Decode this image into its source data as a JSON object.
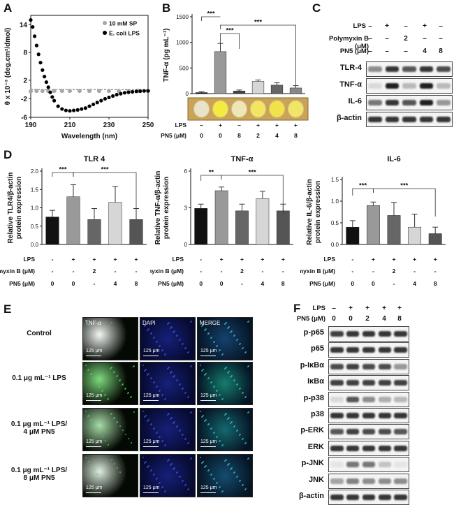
{
  "panels": {
    "A": "A",
    "B": "B",
    "C": "C",
    "D": "D",
    "E": "E",
    "F": "F"
  },
  "chart_data": [
    {
      "id": "A",
      "type": "line",
      "xlabel": "Wavelength (nm)",
      "ylabel": "θ x 10⁻³ (deg.cm²/dmol)",
      "xticks": [
        "190",
        "210",
        "230",
        "250"
      ],
      "yticks": [
        "14",
        "8",
        "2",
        "-2",
        "-6"
      ],
      "xlim": [
        190,
        250
      ],
      "ylim": [
        -6,
        16
      ],
      "series": [
        {
          "name": "10 mM SP",
          "color": "#a6a6a6",
          "x": [
            190,
            193,
            196,
            199,
            202,
            206,
            210,
            215,
            220,
            225,
            230,
            235,
            240,
            245,
            250
          ],
          "y": [
            -0.4,
            -0.3,
            -0.3,
            -0.3,
            -0.3,
            -0.3,
            -0.3,
            -0.3,
            -0.3,
            -0.3,
            -0.3,
            -0.3,
            -0.3,
            -0.3,
            -0.3
          ]
        },
        {
          "name": "E. coli LPS",
          "color": "#000000",
          "x": [
            190,
            191,
            192,
            193,
            194,
            195,
            196,
            197,
            198,
            199,
            200,
            201,
            202,
            204,
            206,
            208,
            210,
            212,
            214,
            216,
            218,
            220,
            222,
            224,
            226,
            228,
            230,
            232,
            234,
            236,
            238,
            240,
            242,
            244,
            246,
            248,
            250
          ],
          "y": [
            15,
            13.5,
            11.5,
            9.5,
            7.6,
            5.8,
            4.2,
            2.8,
            1.6,
            0.5,
            -0.6,
            -1.6,
            -2.4,
            -3.6,
            -4.2,
            -4.5,
            -4.6,
            -4.5,
            -4.4,
            -4.2,
            -4.0,
            -3.6,
            -3.2,
            -2.8,
            -2.4,
            -2.0,
            -1.7,
            -1.4,
            -1.1,
            -0.9,
            -0.7,
            -0.6,
            -0.5,
            -0.4,
            -0.35,
            -0.3,
            -0.3
          ]
        }
      ],
      "dashed_zero": true
    },
    {
      "id": "B",
      "type": "bar",
      "ylabel": "TNF-α (pg mL⁻¹)",
      "yticks": [
        "0",
        "500",
        "1000",
        "1500"
      ],
      "ylim": [
        0,
        1500
      ],
      "values": [
        20,
        820,
        50,
        240,
        165,
        110
      ],
      "errors": [
        15,
        160,
        20,
        25,
        45,
        45
      ],
      "colors": [
        "#111111",
        "#999999",
        "#444444",
        "#d6d6d6",
        "#666666",
        "#888888"
      ],
      "significance": [
        "***",
        "***",
        "***"
      ],
      "rows": [
        {
          "label": "LPS",
          "cells": [
            "–",
            "+",
            "–",
            "+",
            "+",
            "+"
          ]
        },
        {
          "label": "PN5 (μM)",
          "cells": [
            "0",
            "0",
            "8",
            "2",
            "4",
            "8"
          ]
        }
      ]
    },
    {
      "id": "D1",
      "type": "bar",
      "title": "TLR 4",
      "ylabel": "Relative TLR4/β-actin protein expression",
      "yticks": [
        "0.0",
        "0.5",
        "1.0",
        "1.5",
        "2.0"
      ],
      "ylim": [
        0,
        2.0
      ],
      "values": [
        0.75,
        1.3,
        0.68,
        1.15,
        0.68
      ],
      "errors": [
        0.18,
        0.33,
        0.3,
        0.43,
        0.3
      ],
      "colors": [
        "#111111",
        "#999999",
        "#666666",
        "#d6d6d6",
        "#555555"
      ],
      "significance": [
        "***",
        "***"
      ],
      "rows": [
        {
          "label": "LPS",
          "cells": [
            "-",
            "+",
            "+",
            "+",
            "+"
          ]
        },
        {
          "label": "Polymyxin B (μM)",
          "cells": [
            "-",
            "-",
            "2",
            "-",
            "-"
          ]
        },
        {
          "label": "PN5 (μM)",
          "cells": [
            "0",
            "0",
            "-",
            "4",
            "8"
          ]
        }
      ]
    },
    {
      "id": "D2",
      "type": "bar",
      "title": "TNF-α",
      "ylabel": "Relative TNF-α/β-actin protein expression",
      "yticks": [
        "0",
        "3",
        "6"
      ],
      "ylim": [
        0,
        6
      ],
      "values": [
        2.95,
        4.4,
        2.75,
        3.75,
        2.75
      ],
      "errors": [
        0.35,
        0.3,
        0.55,
        0.6,
        0.55
      ],
      "colors": [
        "#111111",
        "#999999",
        "#666666",
        "#d6d6d6",
        "#555555"
      ],
      "significance": [
        "**",
        "***"
      ],
      "rows": [
        {
          "label": "LPS",
          "cells": [
            "-",
            "+",
            "+",
            "+",
            "+"
          ]
        },
        {
          "label": "Polymyxin B (μM)",
          "cells": [
            "-",
            "-",
            "2",
            "-",
            "-"
          ]
        },
        {
          "label": "PN5 (μM)",
          "cells": [
            "0",
            "0",
            "-",
            "4",
            "8"
          ]
        }
      ]
    },
    {
      "id": "D3",
      "type": "bar",
      "title": "IL-6",
      "ylabel": "Relative IL-6/β-actin protein expression",
      "yticks": [
        "0.0",
        "0.5",
        "1.0",
        "1.5"
      ],
      "ylim": [
        0,
        1.5
      ],
      "values": [
        0.4,
        0.9,
        0.67,
        0.4,
        0.25
      ],
      "errors": [
        0.15,
        0.08,
        0.3,
        0.3,
        0.15
      ],
      "colors": [
        "#111111",
        "#999999",
        "#666666",
        "#d6d6d6",
        "#555555"
      ],
      "significance": [
        "***",
        "***"
      ],
      "rows": [
        {
          "label": "LPS",
          "cells": [
            "-",
            "+",
            "+",
            "+",
            "+"
          ]
        },
        {
          "label": "Polymyxin B (μM)",
          "cells": [
            "-",
            "-",
            "2",
            "-",
            "-"
          ]
        },
        {
          "label": "PN5 (μM)",
          "cells": [
            "0",
            "0",
            "-",
            "4",
            "8"
          ]
        }
      ]
    }
  ],
  "panelC": {
    "rows": [
      {
        "label": "LPS",
        "cells": [
          "–",
          "+",
          "–",
          "+",
          "–"
        ]
      },
      {
        "label": "Polymyxin B (μM)",
        "cells": [
          "–",
          "–",
          "2",
          "–",
          "–"
        ]
      },
      {
        "label": "PN5 (μM)",
        "cells": [
          "–",
          "–",
          "–",
          "4",
          "8"
        ]
      }
    ],
    "blots": [
      {
        "label": "TLR-4",
        "intensity": [
          0.45,
          0.85,
          0.7,
          0.85,
          0.75
        ]
      },
      {
        "label": "TNF-α",
        "intensity": [
          0.1,
          0.95,
          0.25,
          0.95,
          0.25
        ]
      },
      {
        "label": "IL-6",
        "intensity": [
          0.55,
          0.85,
          0.7,
          0.95,
          0.4
        ]
      },
      {
        "label": "β-actin",
        "intensity": [
          0.85,
          0.85,
          0.85,
          0.85,
          0.85
        ]
      }
    ]
  },
  "panelE": {
    "columns": [
      "TNF-α",
      "DAPI",
      "MERGE"
    ],
    "rows": [
      {
        "label": "Control",
        "green": 0.05
      },
      {
        "label": "0.1 μg mL⁻¹ LPS",
        "green": 0.6
      },
      {
        "label": "0.1 μg mL⁻¹ LPS/\n4 μM PN5",
        "green": 0.4
      },
      {
        "label": "0.1 μg mL⁻¹ LPS/\n8 μM PN5",
        "green": 0.15
      }
    ],
    "scale_label": "125 μm"
  },
  "panelF": {
    "rows": [
      {
        "label": "LPS",
        "cells": [
          "–",
          "+",
          "+",
          "+",
          "+"
        ]
      },
      {
        "label": "PN5 (μM)",
        "cells": [
          "0",
          "0",
          "2",
          "4",
          "8"
        ]
      }
    ],
    "blots": [
      {
        "label": "p-p65",
        "intensity": [
          0.8,
          0.85,
          0.85,
          0.85,
          0.85
        ]
      },
      {
        "label": "p65",
        "intensity": [
          0.85,
          0.85,
          0.85,
          0.85,
          0.85
        ]
      },
      {
        "label": "p-IκBα",
        "intensity": [
          0.75,
          0.8,
          0.75,
          0.75,
          0.4
        ]
      },
      {
        "label": "IκBα",
        "intensity": [
          0.8,
          0.8,
          0.8,
          0.8,
          0.8
        ]
      },
      {
        "label": "p-p38",
        "intensity": [
          0.1,
          0.7,
          0.45,
          0.3,
          0.25
        ]
      },
      {
        "label": "p38",
        "intensity": [
          0.85,
          0.85,
          0.85,
          0.85,
          0.85
        ]
      },
      {
        "label": "p-ERK",
        "intensity": [
          0.7,
          0.8,
          0.75,
          0.75,
          0.7
        ]
      },
      {
        "label": "ERK",
        "intensity": [
          0.85,
          0.85,
          0.85,
          0.85,
          0.85
        ]
      },
      {
        "label": "p-JNK",
        "intensity": [
          0.05,
          0.55,
          0.55,
          0.2,
          0.05
        ]
      },
      {
        "label": "JNK",
        "intensity": [
          0.35,
          0.5,
          0.45,
          0.45,
          0.45
        ]
      },
      {
        "label": "β-actin",
        "intensity": [
          0.85,
          0.85,
          0.85,
          0.85,
          0.85
        ]
      }
    ]
  }
}
